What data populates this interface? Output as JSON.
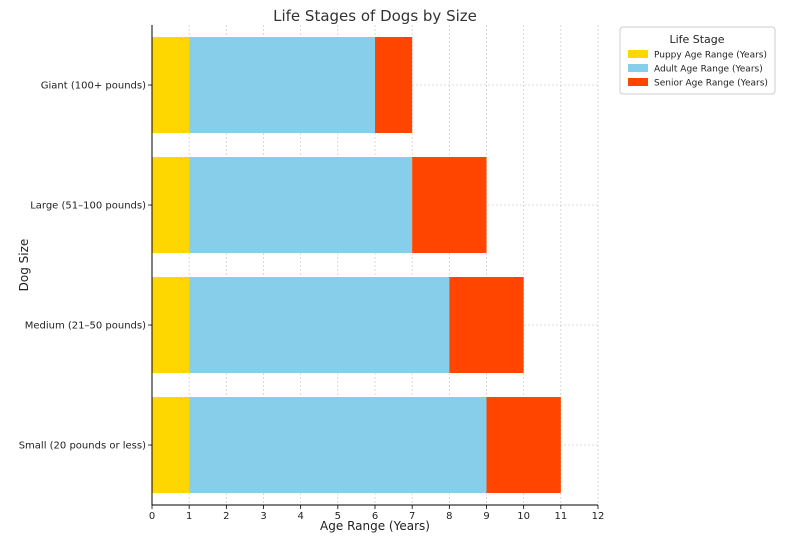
{
  "chart_data": {
    "type": "bar",
    "orientation": "horizontal",
    "stacked": true,
    "title": "Life Stages of Dogs by Size",
    "xlabel": "Age Range (Years)",
    "ylabel": "Dog Size",
    "xlim": [
      0,
      12
    ],
    "xticks": [
      "0",
      "1",
      "2",
      "3",
      "4",
      "5",
      "6",
      "7",
      "8",
      "9",
      "10",
      "11",
      "12"
    ],
    "grid": true,
    "legend": {
      "title": "Life Stage",
      "position": "top-right, outside plot"
    },
    "categories": [
      "Small (20 pounds or less)",
      "Medium (21–50 pounds)",
      "Large (51–100 pounds)",
      "Giant (100+ pounds)"
    ],
    "series": [
      {
        "name": "Puppy Age Range (Years)",
        "color": "#FFD700",
        "values": [
          1,
          1,
          1,
          1
        ]
      },
      {
        "name": "Adult Age Range (Years)",
        "color": "#87CEEB",
        "values": [
          8,
          7,
          6,
          5
        ]
      },
      {
        "name": "Senior Age Range (Years)",
        "color": "#FF4500",
        "values": [
          2,
          2,
          2,
          1
        ]
      }
    ]
  }
}
